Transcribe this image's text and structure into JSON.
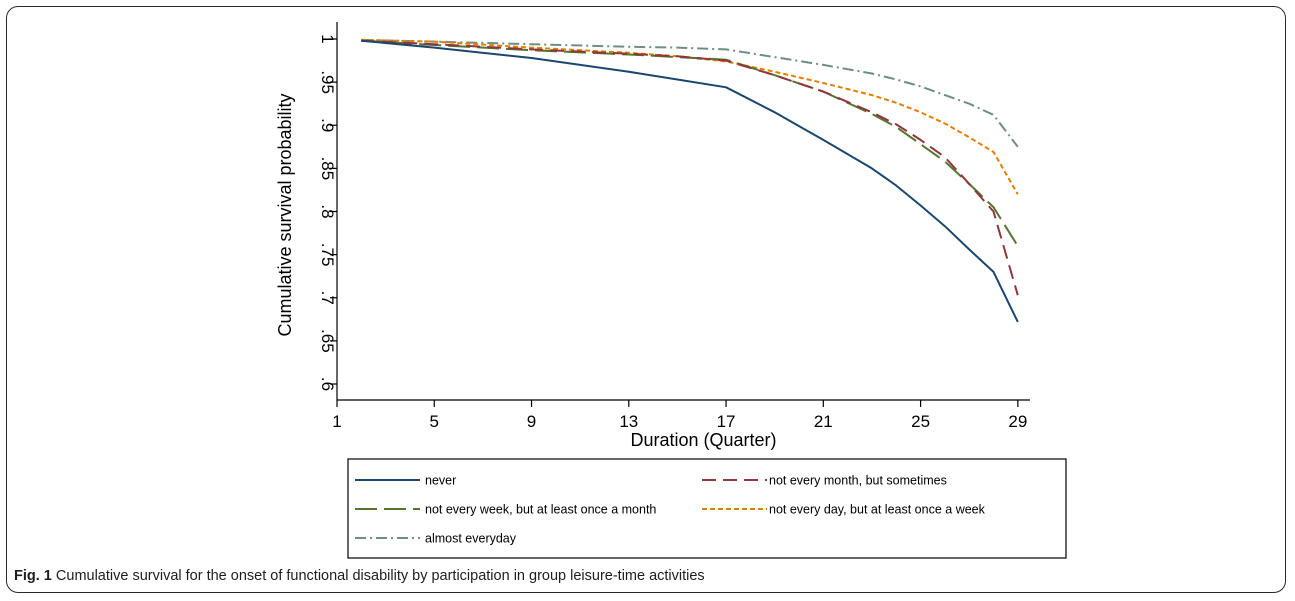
{
  "caption": {
    "label": "Fig. 1",
    "text": "Cumulative survival for the onset of functional disability by participation in group leisure-time activities"
  },
  "chart_data": {
    "type": "line",
    "title": "",
    "xlabel": "Duration (Quarter)",
    "ylabel": "Cumulative survival probability",
    "xlim": [
      1,
      29.5
    ],
    "ylim": [
      0.6,
      1.0
    ],
    "xticks": [
      1,
      5,
      9,
      13,
      17,
      21,
      25,
      29
    ],
    "xtick_labels": [
      "1",
      "5",
      "9",
      "13",
      "17",
      "21",
      "25",
      "29"
    ],
    "yticks": [
      0.6,
      0.65,
      0.7,
      0.75,
      0.8,
      0.85,
      0.9,
      0.95,
      1.0
    ],
    "ytick_labels": [
      ".6",
      ".65",
      ".7",
      ".75",
      ".8",
      ".85",
      ".9",
      ".95",
      "1"
    ],
    "grid": false,
    "legend_position": "bottom",
    "series": [
      {
        "name": "never",
        "color": "#1a476f",
        "dash": "solid",
        "points": [
          [
            2,
            0.998
          ],
          [
            5,
            0.99
          ],
          [
            9,
            0.978
          ],
          [
            13,
            0.962
          ],
          [
            15,
            0.953
          ],
          [
            17,
            0.944
          ],
          [
            19,
            0.915
          ],
          [
            21,
            0.883
          ],
          [
            23,
            0.85
          ],
          [
            24,
            0.83
          ],
          [
            25,
            0.807
          ],
          [
            26,
            0.783
          ],
          [
            27,
            0.756
          ],
          [
            28,
            0.73
          ],
          [
            29,
            0.672
          ]
        ]
      },
      {
        "name": "not every month, but sometimes",
        "color": "#90353b",
        "dash": "long",
        "points": [
          [
            2,
            0.998
          ],
          [
            5,
            0.994
          ],
          [
            9,
            0.988
          ],
          [
            13,
            0.983
          ],
          [
            15,
            0.98
          ],
          [
            17,
            0.975
          ],
          [
            19,
            0.958
          ],
          [
            21,
            0.939
          ],
          [
            23,
            0.915
          ],
          [
            24,
            0.901
          ],
          [
            25,
            0.883
          ],
          [
            26,
            0.863
          ],
          [
            27,
            0.832
          ],
          [
            28,
            0.8
          ],
          [
            29,
            0.703
          ]
        ]
      },
      {
        "name": "not every week, but at least once a month",
        "color": "#55752f",
        "dash": "longlong",
        "points": [
          [
            2,
            0.998
          ],
          [
            5,
            0.993
          ],
          [
            9,
            0.987
          ],
          [
            13,
            0.982
          ],
          [
            15,
            0.979
          ],
          [
            17,
            0.976
          ],
          [
            19,
            0.958
          ],
          [
            21,
            0.939
          ],
          [
            23,
            0.913
          ],
          [
            24,
            0.898
          ],
          [
            25,
            0.878
          ],
          [
            26,
            0.858
          ],
          [
            27,
            0.832
          ],
          [
            28,
            0.805
          ],
          [
            29,
            0.76
          ]
        ]
      },
      {
        "name": "not every day, but at least once a week",
        "color": "#e37e00",
        "dash": "short",
        "points": [
          [
            2,
            0.999
          ],
          [
            5,
            0.997
          ],
          [
            9,
            0.99
          ],
          [
            13,
            0.984
          ],
          [
            15,
            0.98
          ],
          [
            17,
            0.974
          ],
          [
            19,
            0.962
          ],
          [
            21,
            0.949
          ],
          [
            23,
            0.935
          ],
          [
            24,
            0.926
          ],
          [
            25,
            0.915
          ],
          [
            26,
            0.902
          ],
          [
            27,
            0.886
          ],
          [
            28,
            0.869
          ],
          [
            29,
            0.82
          ]
        ]
      },
      {
        "name": "almost everyday",
        "color": "#6e8e84",
        "dash": "dashdot",
        "points": [
          [
            2,
            0.999
          ],
          [
            5,
            0.997
          ],
          [
            9,
            0.994
          ],
          [
            13,
            0.991
          ],
          [
            15,
            0.99
          ],
          [
            17,
            0.988
          ],
          [
            19,
            0.979
          ],
          [
            21,
            0.97
          ],
          [
            23,
            0.96
          ],
          [
            24,
            0.953
          ],
          [
            25,
            0.945
          ],
          [
            26,
            0.935
          ],
          [
            27,
            0.925
          ],
          [
            28,
            0.912
          ],
          [
            29,
            0.875
          ]
        ]
      }
    ]
  }
}
